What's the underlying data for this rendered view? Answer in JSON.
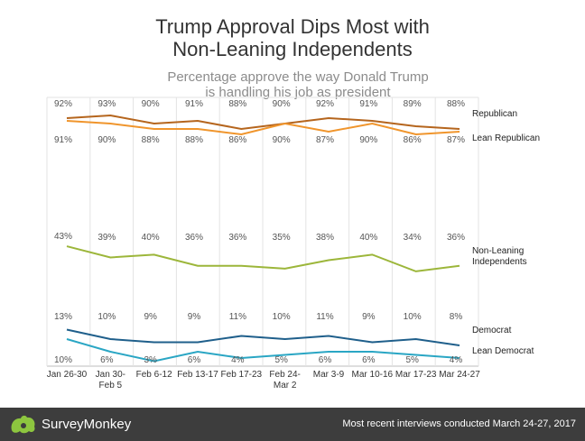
{
  "chart_data": {
    "type": "line",
    "title_lines": [
      "Trump Approval Dips Most with",
      "Non-Leaning Independents"
    ],
    "subtitle_lines": [
      "Percentage approve the way Donald Trump",
      "is handling his job as president"
    ],
    "categories": [
      [
        "Jan 26-30"
      ],
      [
        "Jan 30-",
        "Feb 5"
      ],
      [
        "Feb 6-12"
      ],
      [
        "Feb 13-17"
      ],
      [
        "Feb 17-23"
      ],
      [
        "Feb 24-",
        "Mar 2"
      ],
      [
        "Mar 3-9"
      ],
      [
        "Mar 10-16"
      ],
      [
        "Mar 17-23"
      ],
      [
        "Mar 24-27"
      ]
    ],
    "ylim": [
      0,
      100
    ],
    "grid": "vertical",
    "series": [
      {
        "name": "Republican",
        "color": "#b5651d",
        "values": [
          92,
          93,
          90,
          91,
          88,
          90,
          92,
          91,
          89,
          88
        ],
        "labels": [
          "92%",
          "93%",
          "90%",
          "91%",
          "88%",
          "90%",
          "92%",
          "91%",
          "89%",
          "88%"
        ]
      },
      {
        "name": "Lean Republican",
        "color": "#f0952c",
        "values": [
          91,
          90,
          88,
          88,
          86,
          90,
          87,
          90,
          86,
          87
        ],
        "labels": [
          "91%",
          "90%",
          "88%",
          "88%",
          "86%",
          "90%",
          "87%",
          "90%",
          "86%",
          "87%"
        ]
      },
      {
        "name": "Non-Leaning Independents",
        "name_lines": [
          "Non-Leaning",
          "Independents"
        ],
        "color": "#9cb63a",
        "values": [
          43,
          39,
          40,
          36,
          36,
          35,
          38,
          40,
          34,
          36
        ],
        "labels": [
          "43%",
          "39%",
          "40%",
          "36%",
          "36%",
          "35%",
          "38%",
          "40%",
          "34%",
          "36%"
        ]
      },
      {
        "name": "Democrat",
        "color": "#1f5f8b",
        "values": [
          13,
          10,
          9,
          9,
          11,
          10,
          11,
          9,
          10,
          8
        ],
        "labels": [
          "13%",
          "10%",
          "9%",
          "9%",
          "11%",
          "10%",
          "11%",
          "9%",
          "10%",
          "8%"
        ]
      },
      {
        "name": "Lean Democrat",
        "color": "#2aa6c4",
        "values": [
          10,
          6,
          3,
          6,
          4,
          5,
          6,
          6,
          5,
          4
        ],
        "labels": [
          "10%",
          "6%",
          "3%",
          "6%",
          "4%",
          "5%",
          "6%",
          "6%",
          "5%",
          "4%"
        ]
      }
    ]
  },
  "footer": {
    "logo_text": "SurveyMonkey",
    "note": "Most recent interviews conducted March 24-27, 2017",
    "background": "#3d3d3d",
    "logo_color": "#8dc63f"
  }
}
